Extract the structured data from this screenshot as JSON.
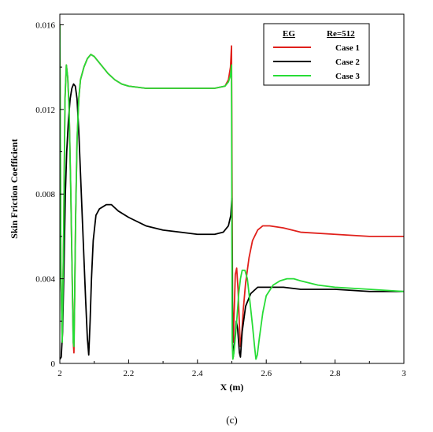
{
  "chart_data": {
    "type": "line",
    "xlabel": "X (m)",
    "ylabel": "Skin Friction Coefficient",
    "caption": "(c)",
    "xlim": [
      2,
      3
    ],
    "ylim": [
      0,
      0.0165
    ],
    "x_ticks": [
      2,
      2.2,
      2.4,
      2.6,
      2.8,
      3
    ],
    "x_tick_labels": [
      "2",
      "2.2",
      "2.4",
      "2.6",
      "2.8",
      "3"
    ],
    "y_ticks": [
      0,
      0.004,
      0.008,
      0.012,
      0.016
    ],
    "y_tick_labels": [
      "0",
      "0.004",
      "0.008",
      "0.012",
      "0.016"
    ],
    "grid": false,
    "legend": {
      "placement": "top-right",
      "header_left": "EG",
      "header_right": "Re=512"
    },
    "series": [
      {
        "name": "Case 1",
        "color": "#e0201b",
        "points": [
          [
            2.0,
            0.016
          ],
          [
            2.003,
            0.0045
          ],
          [
            2.007,
            0.001
          ],
          [
            2.011,
            0.006
          ],
          [
            2.015,
            0.0125
          ],
          [
            2.019,
            0.0141
          ],
          [
            2.023,
            0.0135
          ],
          [
            2.027,
            0.012
          ],
          [
            2.032,
            0.008
          ],
          [
            2.036,
            0.004
          ],
          [
            2.039,
            0.001
          ],
          [
            2.041,
            0.0005
          ],
          [
            2.043,
            0.003
          ],
          [
            2.046,
            0.007
          ],
          [
            2.05,
            0.0105
          ],
          [
            2.055,
            0.0125
          ],
          [
            2.06,
            0.0134
          ],
          [
            2.07,
            0.014
          ],
          [
            2.08,
            0.0144
          ],
          [
            2.09,
            0.0146
          ],
          [
            2.1,
            0.0145
          ],
          [
            2.12,
            0.0141
          ],
          [
            2.14,
            0.0137
          ],
          [
            2.16,
            0.0134
          ],
          [
            2.18,
            0.0132
          ],
          [
            2.2,
            0.0131
          ],
          [
            2.25,
            0.013
          ],
          [
            2.3,
            0.013
          ],
          [
            2.35,
            0.013
          ],
          [
            2.4,
            0.013
          ],
          [
            2.45,
            0.013
          ],
          [
            2.48,
            0.0131
          ],
          [
            2.49,
            0.0134
          ],
          [
            2.496,
            0.014
          ],
          [
            2.499,
            0.015
          ],
          [
            2.502,
            0.003
          ],
          [
            2.504,
            0.001
          ],
          [
            2.507,
            0.0025
          ],
          [
            2.51,
            0.0042
          ],
          [
            2.514,
            0.0045
          ],
          [
            2.518,
            0.0035
          ],
          [
            2.522,
            0.0018
          ],
          [
            2.525,
            0.0008
          ],
          [
            2.528,
            0.0012
          ],
          [
            2.533,
            0.0025
          ],
          [
            2.54,
            0.0038
          ],
          [
            2.55,
            0.005
          ],
          [
            2.56,
            0.0058
          ],
          [
            2.575,
            0.0063
          ],
          [
            2.59,
            0.0065
          ],
          [
            2.61,
            0.0065
          ],
          [
            2.65,
            0.0064
          ],
          [
            2.7,
            0.0062
          ],
          [
            2.8,
            0.0061
          ],
          [
            2.9,
            0.006
          ],
          [
            3.0,
            0.006
          ]
        ]
      },
      {
        "name": "Case 2",
        "color": "#000000",
        "points": [
          [
            2.0,
            0.0002
          ],
          [
            2.004,
            0.0003
          ],
          [
            2.008,
            0.0015
          ],
          [
            2.012,
            0.0045
          ],
          [
            2.016,
            0.008
          ],
          [
            2.02,
            0.01
          ],
          [
            2.025,
            0.0115
          ],
          [
            2.03,
            0.0125
          ],
          [
            2.035,
            0.013
          ],
          [
            2.04,
            0.0132
          ],
          [
            2.045,
            0.0131
          ],
          [
            2.05,
            0.0125
          ],
          [
            2.055,
            0.011
          ],
          [
            2.06,
            0.009
          ],
          [
            2.065,
            0.007
          ],
          [
            2.07,
            0.005
          ],
          [
            2.075,
            0.003
          ],
          [
            2.08,
            0.0012
          ],
          [
            2.084,
            0.0004
          ],
          [
            2.088,
            0.002
          ],
          [
            2.092,
            0.004
          ],
          [
            2.097,
            0.0058
          ],
          [
            2.105,
            0.007
          ],
          [
            2.115,
            0.0073
          ],
          [
            2.125,
            0.0074
          ],
          [
            2.135,
            0.0075
          ],
          [
            2.15,
            0.0075
          ],
          [
            2.17,
            0.0072
          ],
          [
            2.2,
            0.0069
          ],
          [
            2.25,
            0.0065
          ],
          [
            2.3,
            0.0063
          ],
          [
            2.35,
            0.0062
          ],
          [
            2.4,
            0.0061
          ],
          [
            2.45,
            0.0061
          ],
          [
            2.475,
            0.0062
          ],
          [
            2.49,
            0.0065
          ],
          [
            2.497,
            0.007
          ],
          [
            2.5,
            0.0078
          ],
          [
            2.502,
            0.001
          ],
          [
            2.504,
            0.0003
          ],
          [
            2.508,
            0.001
          ],
          [
            2.513,
            0.002
          ],
          [
            2.517,
            0.0016
          ],
          [
            2.522,
            0.0005
          ],
          [
            2.525,
            0.0003
          ],
          [
            2.53,
            0.0015
          ],
          [
            2.54,
            0.0027
          ],
          [
            2.555,
            0.0033
          ],
          [
            2.575,
            0.0036
          ],
          [
            2.6,
            0.0036
          ],
          [
            2.65,
            0.0036
          ],
          [
            2.7,
            0.0035
          ],
          [
            2.8,
            0.0035
          ],
          [
            2.9,
            0.0034
          ],
          [
            3.0,
            0.0034
          ]
        ]
      },
      {
        "name": "Case 3",
        "color": "#27dc36",
        "points": [
          [
            2.0,
            0.016
          ],
          [
            2.003,
            0.0045
          ],
          [
            2.007,
            0.001
          ],
          [
            2.011,
            0.006
          ],
          [
            2.015,
            0.0125
          ],
          [
            2.019,
            0.0141
          ],
          [
            2.023,
            0.0135
          ],
          [
            2.027,
            0.012
          ],
          [
            2.032,
            0.008
          ],
          [
            2.036,
            0.004
          ],
          [
            2.039,
            0.001
          ],
          [
            2.041,
            0.0008
          ],
          [
            2.043,
            0.003
          ],
          [
            2.046,
            0.007
          ],
          [
            2.05,
            0.0105
          ],
          [
            2.055,
            0.0125
          ],
          [
            2.06,
            0.0134
          ],
          [
            2.07,
            0.014
          ],
          [
            2.08,
            0.0144
          ],
          [
            2.09,
            0.0146
          ],
          [
            2.1,
            0.0145
          ],
          [
            2.12,
            0.0141
          ],
          [
            2.14,
            0.0137
          ],
          [
            2.16,
            0.0134
          ],
          [
            2.18,
            0.0132
          ],
          [
            2.2,
            0.0131
          ],
          [
            2.25,
            0.013
          ],
          [
            2.3,
            0.013
          ],
          [
            2.35,
            0.013
          ],
          [
            2.4,
            0.013
          ],
          [
            2.45,
            0.013
          ],
          [
            2.48,
            0.0131
          ],
          [
            2.49,
            0.0133
          ],
          [
            2.496,
            0.0136
          ],
          [
            2.499,
            0.0141
          ],
          [
            2.501,
            0.001
          ],
          [
            2.503,
            0.0002
          ],
          [
            2.506,
            0.0005
          ],
          [
            2.51,
            0.0012
          ],
          [
            2.515,
            0.0022
          ],
          [
            2.52,
            0.0033
          ],
          [
            2.525,
            0.004
          ],
          [
            2.53,
            0.0044
          ],
          [
            2.538,
            0.0044
          ],
          [
            2.545,
            0.004
          ],
          [
            2.552,
            0.003
          ],
          [
            2.56,
            0.0018
          ],
          [
            2.566,
            0.0008
          ],
          [
            2.57,
            0.0002
          ],
          [
            2.574,
            0.0004
          ],
          [
            2.58,
            0.0012
          ],
          [
            2.59,
            0.0024
          ],
          [
            2.6,
            0.0032
          ],
          [
            2.62,
            0.0037
          ],
          [
            2.64,
            0.0039
          ],
          [
            2.66,
            0.004
          ],
          [
            2.68,
            0.004
          ],
          [
            2.7,
            0.0039
          ],
          [
            2.75,
            0.0037
          ],
          [
            2.8,
            0.0036
          ],
          [
            2.9,
            0.0035
          ],
          [
            3.0,
            0.0034
          ]
        ]
      }
    ]
  }
}
